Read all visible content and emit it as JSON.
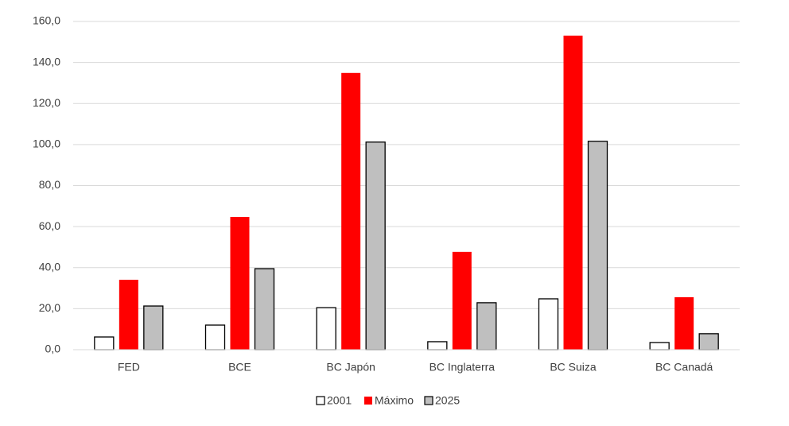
{
  "chart_data": {
    "type": "bar",
    "categories": [
      "FED",
      "BCE",
      "BC Japón",
      "BC Inglaterra",
      "BC Suiza",
      "BC Canadá"
    ],
    "series": [
      {
        "name": "2001",
        "color": "#ffffff",
        "values": [
          6.2,
          12.0,
          20.5,
          3.9,
          24.8,
          3.5
        ]
      },
      {
        "name": "Máximo",
        "color": "#ff0000",
        "values": [
          34.1,
          64.7,
          134.9,
          47.7,
          153.1,
          25.6
        ]
      },
      {
        "name": "2025",
        "color": "#bfbfbf",
        "values": [
          21.3,
          39.5,
          101.2,
          22.9,
          101.6,
          7.8
        ]
      }
    ],
    "ylim": [
      0,
      160
    ],
    "yticks": [
      {
        "value": 0,
        "label": "0,0"
      },
      {
        "value": 20,
        "label": "20,0"
      },
      {
        "value": 40,
        "label": "40,0"
      },
      {
        "value": 60,
        "label": "60,0"
      },
      {
        "value": 80,
        "label": "80,0"
      },
      {
        "value": 100,
        "label": "100,0"
      },
      {
        "value": 120,
        "label": "120,0"
      },
      {
        "value": 140,
        "label": "140,0"
      },
      {
        "value": 160,
        "label": "160,0"
      }
    ],
    "grid": true,
    "legend": "bottom"
  }
}
